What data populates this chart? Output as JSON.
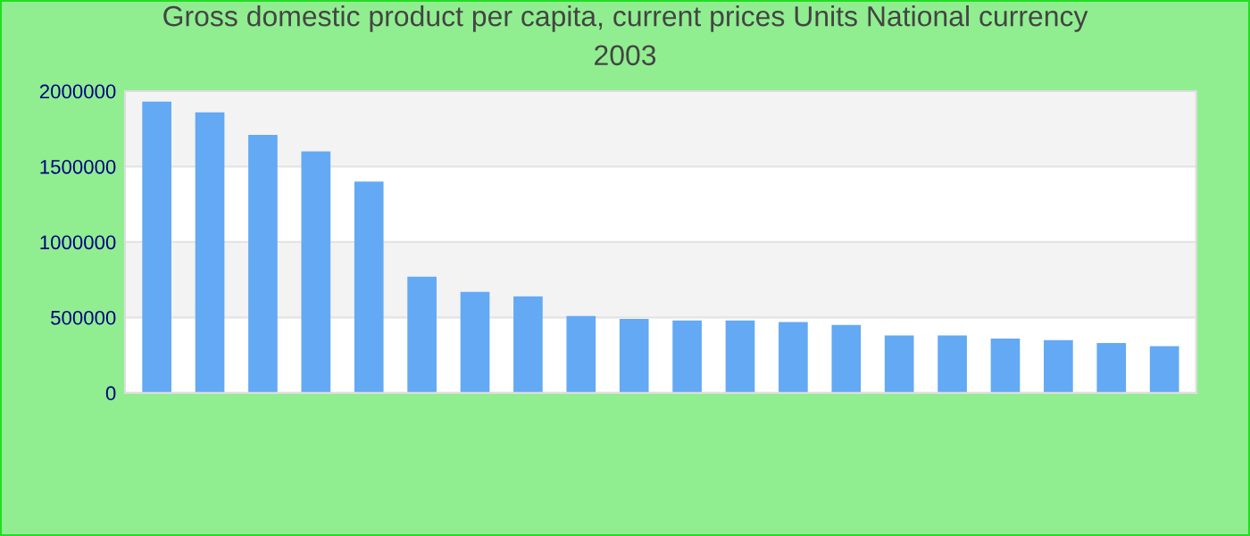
{
  "chart_data": {
    "type": "bar",
    "title": "Gross domestic product per capita, current prices Units National currency\n2003",
    "categories": [
      null,
      null,
      null,
      null,
      null,
      null,
      null,
      null,
      null,
      null,
      null,
      null,
      null,
      null,
      null,
      null,
      null,
      null,
      null,
      null
    ],
    "values": [
      1930000,
      1860000,
      1710000,
      1600000,
      1400000,
      770000,
      670000,
      640000,
      510000,
      490000,
      480000,
      480000,
      470000,
      450000,
      380000,
      380000,
      360000,
      350000,
      330000,
      310000
    ],
    "color": "#63a9f4",
    "ylim": [
      0,
      2000000
    ],
    "yticks": [
      0,
      500000,
      1000000,
      1500000,
      2000000
    ],
    "grid": "y",
    "legend": false
  }
}
